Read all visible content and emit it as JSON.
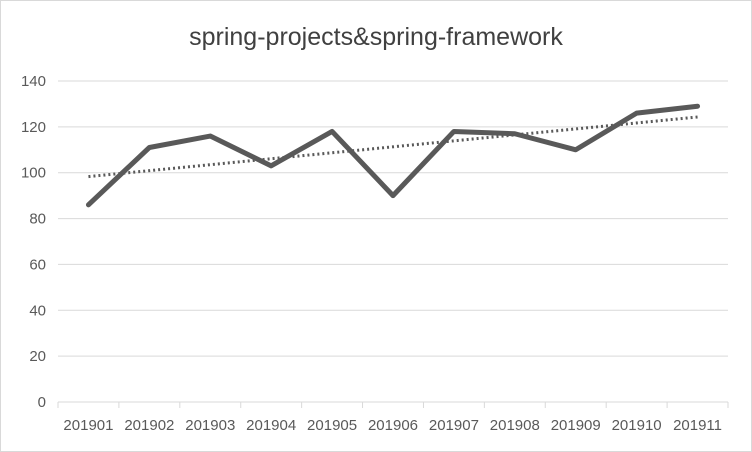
{
  "chart_data": {
    "type": "line",
    "title": "spring-projects&spring-framework",
    "xlabel": "",
    "ylabel": "",
    "categories": [
      "201901",
      "201902",
      "201903",
      "201904",
      "201905",
      "201906",
      "201907",
      "201908",
      "201909",
      "201910",
      "201911"
    ],
    "series": [
      {
        "values": [
          86,
          111,
          116,
          103,
          118,
          90,
          118,
          117,
          110,
          126,
          129
        ],
        "color": "#595959",
        "style": "solid"
      }
    ],
    "trendline": {
      "type": "linear",
      "start": 98.3,
      "end": 124.3,
      "color": "#595959",
      "style": "dotted"
    },
    "ylim": [
      0,
      140
    ],
    "yticks": [
      0,
      20,
      40,
      60,
      80,
      100,
      120,
      140
    ],
    "grid": true,
    "legend": "none",
    "colors": {
      "gridline": "#d9d9d9",
      "axis_text": "#595959",
      "title_text": "#404040"
    }
  }
}
